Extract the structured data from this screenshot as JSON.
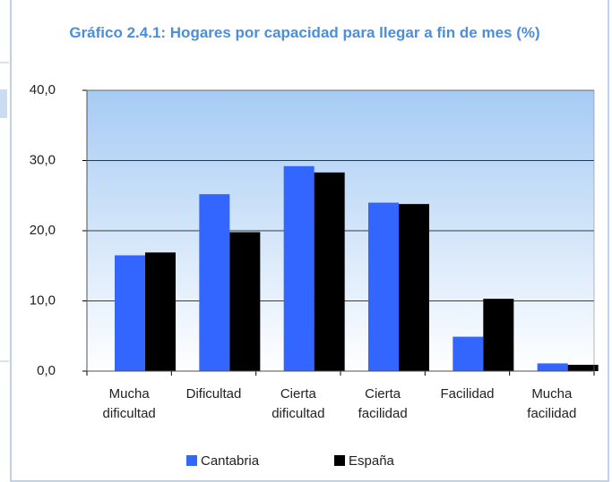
{
  "chart_data": {
    "type": "bar",
    "title": "Gráfico 2.4.1: Hogares por capacidad para llegar a fin de mes  (%)",
    "categories": [
      "Mucha dificultad",
      "Dificultad",
      "Cierta dificultad",
      "Cierta facilidad",
      "Facilidad",
      "Mucha facilidad"
    ],
    "series": [
      {
        "name": "Cantabria",
        "color": "#3366ff",
        "values": [
          16.5,
          25.2,
          29.2,
          24.0,
          4.9,
          1.1
        ]
      },
      {
        "name": "España",
        "color": "#000000",
        "values": [
          16.9,
          19.8,
          28.3,
          23.8,
          10.3,
          0.9
        ]
      }
    ],
    "ylim": [
      0,
      40
    ],
    "yticks": [
      {
        "value": 0,
        "label": "0,0"
      },
      {
        "value": 10,
        "label": "10,0"
      },
      {
        "value": 20,
        "label": "20,0"
      },
      {
        "value": 30,
        "label": "30,0"
      },
      {
        "value": 40,
        "label": "40,0"
      }
    ],
    "grid": true,
    "legend": "bottom"
  }
}
